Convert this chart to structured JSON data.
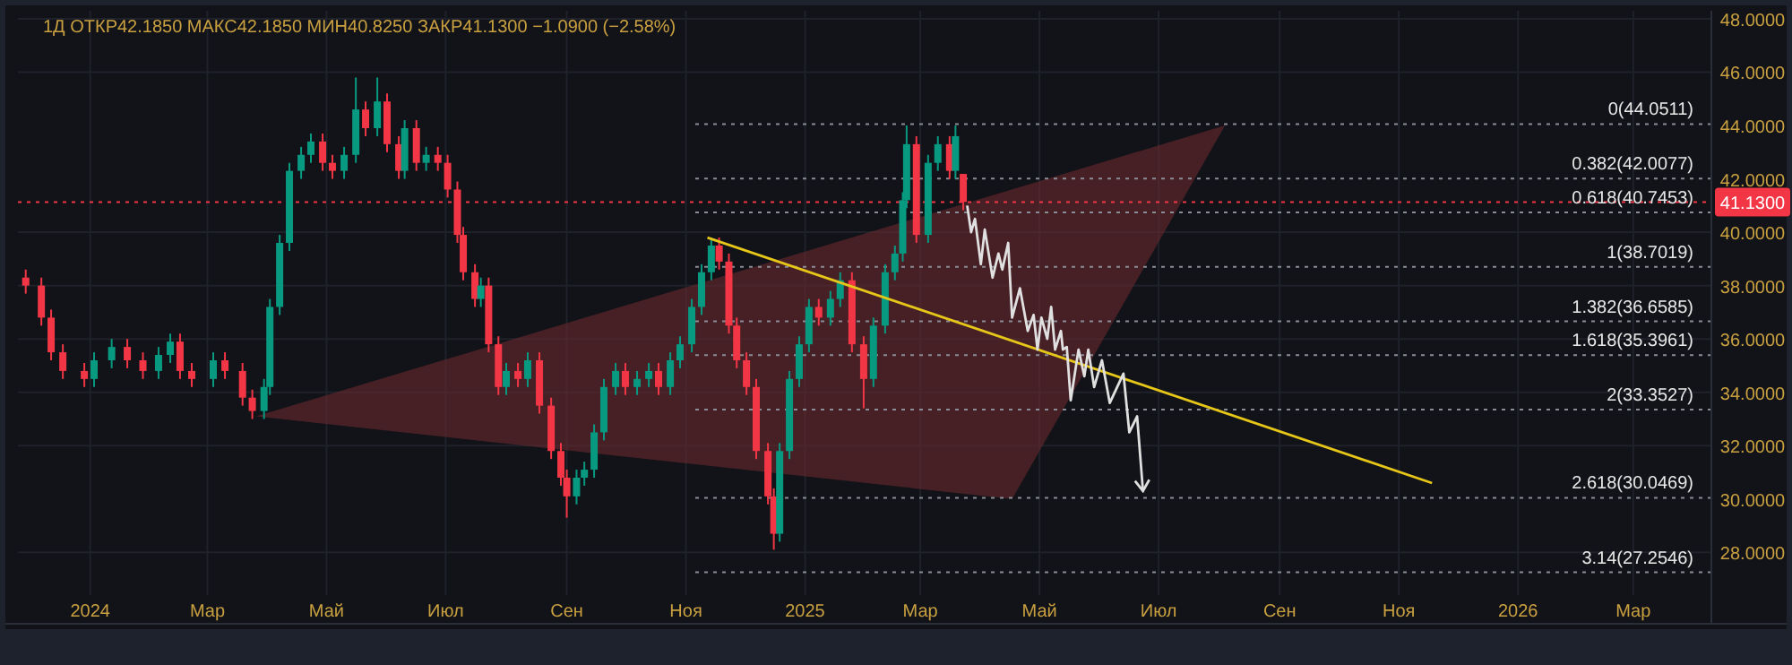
{
  "chart_data": {
    "type": "candlestick",
    "title": "1Д ОТКР42.1850 МАКС42.1850 МИН40.8250 ЗАКР41.1300 −1.0900 (−2.58%)",
    "x": [
      "2023-11-29",
      "2023-12-07",
      "2023-12-12",
      "2023-12-18",
      "2023-12-29",
      "2024-01-03",
      "2024-01-12",
      "2024-01-20",
      "2024-01-28",
      "2024-02-05",
      "2024-02-11",
      "2024-02-16",
      "2024-02-22",
      "2024-03-04",
      "2024-03-10",
      "2024-03-19",
      "2024-03-24",
      "2024-03-30",
      "2024-04-02",
      "2024-04-07",
      "2024-04-12",
      "2024-04-18",
      "2024-04-23",
      "2024-04-29",
      "2024-05-04",
      "2024-05-10",
      "2024-05-16",
      "2024-05-21",
      "2024-05-27",
      "2024-06-01",
      "2024-06-07",
      "2024-06-10",
      "2024-06-16",
      "2024-06-21",
      "2024-06-27",
      "2024-07-02",
      "2024-07-07",
      "2024-07-10",
      "2024-07-16",
      "2024-07-19",
      "2024-07-23",
      "2024-07-28",
      "2024-08-01",
      "2024-08-07",
      "2024-08-12",
      "2024-08-18",
      "2024-08-24",
      "2024-08-29",
      "2024-09-01",
      "2024-09-06",
      "2024-09-10",
      "2024-09-15",
      "2024-09-20",
      "2024-09-26",
      "2024-10-01",
      "2024-10-07",
      "2024-10-13",
      "2024-10-18",
      "2024-10-24",
      "2024-10-29",
      "2024-11-04",
      "2024-11-09",
      "2024-11-14",
      "2024-11-18",
      "2024-11-23",
      "2024-11-27",
      "2024-12-02",
      "2024-12-07",
      "2024-12-13",
      "2024-12-16",
      "2024-12-19",
      "2024-12-24",
      "2024-12-29",
      "2025-01-03",
      "2025-01-08",
      "2025-01-14",
      "2025-01-19",
      "2025-01-25",
      "2025-01-31",
      "2025-02-05",
      "2025-02-11",
      "2025-02-16",
      "2025-02-20",
      "2025-02-22",
      "2025-02-27",
      "2025-03-05",
      "2025-03-10",
      "2025-03-16",
      "2025-03-19",
      "2025-03-23"
    ],
    "ohlc": [
      [
        38.3,
        38.6,
        37.7,
        38.0
      ],
      [
        38.0,
        38.3,
        36.5,
        36.8
      ],
      [
        36.8,
        37.1,
        35.2,
        35.5
      ],
      [
        35.5,
        35.8,
        34.5,
        34.8
      ],
      [
        34.8,
        35.1,
        34.2,
        34.5
      ],
      [
        34.5,
        35.5,
        34.2,
        35.2
      ],
      [
        35.2,
        36.0,
        34.9,
        35.7
      ],
      [
        35.7,
        36.0,
        34.9,
        35.2
      ],
      [
        35.2,
        35.5,
        34.5,
        34.8
      ],
      [
        34.8,
        35.7,
        34.5,
        35.4
      ],
      [
        35.4,
        36.2,
        35.1,
        35.9
      ],
      [
        35.9,
        36.2,
        34.5,
        34.8
      ],
      [
        34.8,
        35.1,
        34.2,
        34.5
      ],
      [
        34.5,
        35.5,
        34.2,
        35.2
      ],
      [
        35.2,
        35.5,
        34.5,
        34.8
      ],
      [
        34.8,
        35.1,
        33.5,
        33.8
      ],
      [
        33.8,
        34.1,
        33.0,
        33.3
      ],
      [
        33.3,
        34.5,
        33.0,
        34.2
      ],
      [
        34.2,
        37.5,
        33.9,
        37.2
      ],
      [
        37.2,
        39.9,
        36.9,
        39.6
      ],
      [
        39.6,
        42.6,
        39.3,
        42.3
      ],
      [
        42.3,
        43.2,
        42.0,
        42.9
      ],
      [
        42.9,
        43.7,
        42.6,
        43.4
      ],
      [
        43.4,
        43.7,
        42.3,
        42.6
      ],
      [
        42.6,
        42.9,
        42.0,
        42.3
      ],
      [
        42.3,
        43.2,
        42.0,
        42.9
      ],
      [
        42.9,
        45.8,
        42.6,
        44.6
      ],
      [
        44.6,
        44.9,
        43.6,
        43.9
      ],
      [
        43.9,
        45.8,
        43.6,
        44.9
      ],
      [
        44.9,
        45.2,
        43.0,
        43.3
      ],
      [
        43.3,
        43.6,
        42.0,
        42.3
      ],
      [
        42.3,
        44.2,
        42.0,
        43.9
      ],
      [
        43.9,
        44.2,
        42.3,
        42.6
      ],
      [
        42.6,
        43.2,
        42.3,
        42.9
      ],
      [
        42.9,
        43.2,
        42.3,
        42.6
      ],
      [
        42.6,
        42.9,
        41.3,
        41.6
      ],
      [
        41.6,
        41.9,
        39.6,
        39.9
      ],
      [
        39.9,
        40.2,
        38.2,
        38.5
      ],
      [
        38.5,
        38.8,
        37.2,
        37.5
      ],
      [
        37.5,
        38.3,
        37.2,
        38.0
      ],
      [
        38.0,
        38.3,
        35.5,
        35.8
      ],
      [
        35.8,
        36.1,
        33.9,
        34.2
      ],
      [
        34.2,
        35.1,
        33.9,
        34.8
      ],
      [
        34.8,
        35.1,
        34.2,
        34.5
      ],
      [
        34.5,
        35.5,
        34.2,
        35.2
      ],
      [
        35.2,
        35.5,
        33.2,
        33.5
      ],
      [
        33.5,
        33.8,
        31.5,
        31.8
      ],
      [
        31.8,
        32.1,
        30.5,
        30.8
      ],
      [
        30.8,
        31.1,
        29.3,
        30.1
      ],
      [
        30.1,
        31.1,
        29.8,
        30.8
      ],
      [
        30.8,
        31.4,
        30.5,
        31.1
      ],
      [
        31.1,
        32.8,
        30.8,
        32.5
      ],
      [
        32.5,
        34.5,
        32.2,
        34.2
      ],
      [
        34.2,
        35.1,
        33.9,
        34.8
      ],
      [
        34.8,
        35.1,
        33.9,
        34.2
      ],
      [
        34.2,
        34.8,
        33.9,
        34.5
      ],
      [
        34.5,
        35.1,
        34.2,
        34.8
      ],
      [
        34.8,
        35.1,
        33.9,
        34.2
      ],
      [
        34.2,
        35.5,
        33.9,
        35.2
      ],
      [
        35.2,
        36.1,
        34.9,
        35.8
      ],
      [
        35.8,
        37.5,
        35.5,
        37.2
      ],
      [
        37.2,
        38.8,
        36.9,
        38.5
      ],
      [
        38.5,
        39.8,
        38.2,
        39.5
      ],
      [
        39.5,
        39.8,
        38.6,
        38.9
      ],
      [
        38.9,
        39.2,
        36.2,
        36.5
      ],
      [
        36.5,
        36.8,
        34.9,
        35.2
      ],
      [
        35.2,
        35.5,
        33.9,
        34.2
      ],
      [
        34.2,
        34.5,
        31.5,
        31.8
      ],
      [
        31.8,
        32.1,
        29.8,
        30.1
      ],
      [
        30.1,
        30.4,
        28.1,
        28.7
      ],
      [
        28.7,
        32.1,
        28.4,
        31.8
      ],
      [
        31.8,
        34.8,
        31.5,
        34.5
      ],
      [
        34.5,
        36.1,
        34.2,
        35.8
      ],
      [
        35.8,
        37.5,
        35.5,
        37.2
      ],
      [
        37.2,
        37.5,
        36.5,
        36.8
      ],
      [
        36.8,
        37.8,
        36.5,
        37.5
      ],
      [
        37.5,
        38.5,
        37.2,
        38.2
      ],
      [
        38.2,
        38.5,
        35.5,
        35.8
      ],
      [
        35.8,
        36.1,
        33.4,
        34.5
      ],
      [
        34.5,
        36.8,
        34.2,
        36.5
      ],
      [
        36.5,
        38.8,
        36.2,
        38.5
      ],
      [
        38.5,
        39.5,
        38.2,
        39.2
      ],
      [
        39.2,
        41.5,
        38.9,
        41.2
      ],
      [
        41.2,
        44.0,
        40.9,
        43.3
      ],
      [
        43.3,
        43.6,
        39.6,
        39.9
      ],
      [
        39.9,
        42.9,
        39.6,
        42.6
      ],
      [
        42.6,
        43.6,
        42.3,
        43.3
      ],
      [
        43.3,
        43.6,
        42.0,
        42.3
      ],
      [
        42.3,
        44.0,
        42.0,
        43.6
      ],
      [
        42.185,
        42.185,
        40.825,
        41.13
      ]
    ],
    "series": [
      {
        "type": "line",
        "color": "#e6c619",
        "x": [
          "2024-11-12",
          "2025-11-18"
        ],
        "values": [
          39.8,
          30.6
        ]
      },
      {
        "type": "line",
        "color": "#e0e0e0",
        "x": [
          "2025-03-25",
          "2025-03-27",
          "2025-03-29",
          "2025-04-01",
          "2025-04-03",
          "2025-04-07",
          "2025-04-10",
          "2025-04-12",
          "2025-04-15",
          "2025-04-17",
          "2025-04-21",
          "2025-04-25",
          "2025-04-28",
          "2025-04-30",
          "2025-05-02",
          "2025-05-05",
          "2025-05-07",
          "2025-05-09",
          "2025-05-12",
          "2025-05-13",
          "2025-05-15",
          "2025-05-17",
          "2025-05-21",
          "2025-05-24",
          "2025-05-26",
          "2025-05-29",
          "2025-06-02",
          "2025-06-06",
          "2025-06-13",
          "2025-06-16",
          "2025-06-20",
          "2025-06-23"
        ],
        "values": [
          41.0,
          40.0,
          40.5,
          38.8,
          40.1,
          38.3,
          39.2,
          38.6,
          39.6,
          36.8,
          37.9,
          36.3,
          36.9,
          35.6,
          36.8,
          36.0,
          37.2,
          35.6,
          36.3,
          35.6,
          35.7,
          33.7,
          35.6,
          34.6,
          35.6,
          34.2,
          35.2,
          33.6,
          34.7,
          32.5,
          33.1,
          30.3
        ]
      }
    ],
    "ref_lines": [
      {
        "axis": "y",
        "value": 41.13,
        "label": "41.1300",
        "color": "#f23645",
        "line_style": "dotted"
      },
      {
        "axis": "y",
        "value": 44.0511,
        "label": "0(44.0511)",
        "color": "#8a8d96",
        "line_style": "dotted"
      },
      {
        "axis": "y",
        "value": 42.0077,
        "label": "0.382(42.0077)",
        "color": "#8a8d96",
        "line_style": "dotted"
      },
      {
        "axis": "y",
        "value": 40.7453,
        "label": "0.618(40.7453)",
        "color": "#8a8d96",
        "line_style": "dotted"
      },
      {
        "axis": "y",
        "value": 38.7019,
        "label": "1(38.7019)",
        "color": "#8a8d96",
        "line_style": "dotted"
      },
      {
        "axis": "y",
        "value": 36.6585,
        "label": "1.382(36.6585)",
        "color": "#8a8d96",
        "line_style": "dotted"
      },
      {
        "axis": "y",
        "value": 35.3961,
        "label": "1.618(35.3961)",
        "color": "#8a8d96",
        "line_style": "dotted"
      },
      {
        "axis": "y",
        "value": 33.3527,
        "label": "2(33.3527)",
        "color": "#8a8d96",
        "line_style": "dotted"
      },
      {
        "axis": "y",
        "value": 30.0469,
        "label": "2.618(30.0469)",
        "color": "#8a8d96",
        "line_style": "dotted"
      },
      {
        "axis": "y",
        "value": 27.2546,
        "label": "3.14(27.2546)",
        "color": "#8a8d96",
        "line_style": "dotted"
      }
    ],
    "xlim": [
      "2023-11-25",
      "2026-04-10"
    ],
    "xticks": [
      {
        "value": "2024-01-01",
        "label": "2024"
      },
      {
        "value": "2024-03-01",
        "label": "Мар"
      },
      {
        "value": "2024-05-01",
        "label": "Май"
      },
      {
        "value": "2024-07-01",
        "label": "Июл"
      },
      {
        "value": "2024-09-01",
        "label": "Сен"
      },
      {
        "value": "2024-11-01",
        "label": "Ноя"
      },
      {
        "value": "2025-01-01",
        "label": "2025"
      },
      {
        "value": "2025-03-01",
        "label": "Мар"
      },
      {
        "value": "2025-05-01",
        "label": "Май"
      },
      {
        "value": "2025-07-01",
        "label": "Июл"
      },
      {
        "value": "2025-09-01",
        "label": "Сен"
      },
      {
        "value": "2025-11-01",
        "label": "Ноя"
      },
      {
        "value": "2026-01-01",
        "label": "2026"
      },
      {
        "value": "2026-03-01",
        "label": "Мар"
      }
    ],
    "ylim": [
      26.4,
      48.3
    ],
    "yticks": [
      {
        "value": 28,
        "label": "28.0000"
      },
      {
        "value": 30,
        "label": "30.0000"
      },
      {
        "value": 32,
        "label": "32.0000"
      },
      {
        "value": 34,
        "label": "34.0000"
      },
      {
        "value": 36,
        "label": "36.0000"
      },
      {
        "value": 38,
        "label": "38.0000"
      },
      {
        "value": 40,
        "label": "40.0000"
      },
      {
        "value": 42,
        "label": "42.0000"
      },
      {
        "value": 44,
        "label": "44.0000"
      },
      {
        "value": 46,
        "label": "46.0000"
      },
      {
        "value": 48,
        "label": "48.0000"
      }
    ],
    "grid": true
  }
}
